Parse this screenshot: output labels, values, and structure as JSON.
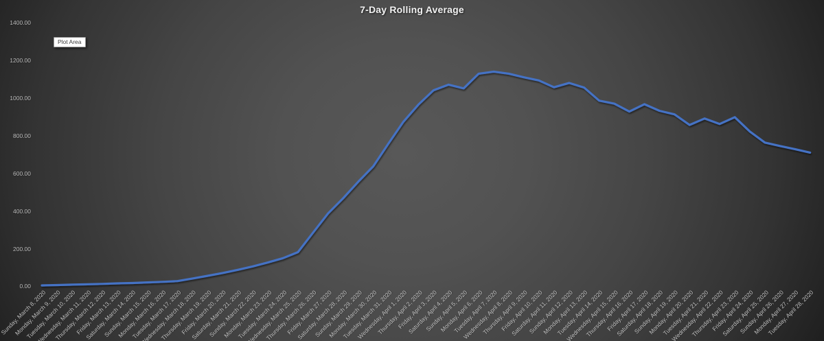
{
  "chart": {
    "title": "7-Day Rolling Average",
    "plot_area_tooltip": "Plot Area",
    "line_color": "#4472C4",
    "background_center_color": "#565656",
    "background_edge_color": "#1d1d1d",
    "gridline_color": "#808080",
    "axis_label_color": "#c4c4c4"
  },
  "chart_data": {
    "type": "line",
    "title": "7-Day Rolling Average",
    "xlabel": "",
    "ylabel": "",
    "ylim": [
      0,
      1400
    ],
    "ytick_interval": 200,
    "ytick_labels": [
      "0.00",
      "200.00",
      "400.00",
      "600.00",
      "800.00",
      "1000.00",
      "1200.00",
      "1400.00"
    ],
    "grid": "on",
    "legend": "none",
    "series_name": "7-Day Rolling Average",
    "categories": [
      "Sunday, March 8, 2020",
      "Monday, March 9, 2020",
      "Tuesday, March 10, 2020",
      "Wednesday, March 11, 2020",
      "Thursday, March 12, 2020",
      "Friday, March 13, 2020",
      "Saturday, March 14, 2020",
      "Sunday, March 15, 2020",
      "Monday, March 16, 2020",
      "Tuesday, March 17, 2020",
      "Wednesday, March 18, 2020",
      "Thursday, March 19, 2020",
      "Friday, March 20, 2020",
      "Saturday, March 21, 2020",
      "Sunday, March 22, 2020",
      "Monday, March 23, 2020",
      "Tuesday, March 24, 2020",
      "Wednesday, March 25, 2020",
      "Thursday, March 26, 2020",
      "Friday, March 27, 2020",
      "Saturday, March 28, 2020",
      "Sunday, March 29, 2020",
      "Monday, March 30, 2020",
      "Tuesday, March 31, 2020",
      "Wednesday, April 1, 2020",
      "Thursday, April 2, 2020",
      "Friday, April 3, 2020",
      "Saturday, April 4, 2020",
      "Sunday, April 5, 2020",
      "Monday, April 6, 2020",
      "Tuesday, April 7, 2020",
      "Wednesday, April 8, 2020",
      "Thursday, April 9, 2020",
      "Friday, April 10, 2020",
      "Saturday, April 11, 2020",
      "Sunday, April 12, 2020",
      "Monday, April 13, 2020",
      "Tuesday, April 14, 2020",
      "Wednesday, April 15, 2020",
      "Thursday, April 16, 2020",
      "Friday, April 17, 2020",
      "Saturday, April 18, 2020",
      "Sunday, April 19, 2020",
      "Monday, April 20, 2020",
      "Tuesday, April 21, 2020",
      "Wednesday, April 22, 2020",
      "Thursday, April 23, 2020",
      "Friday, April 24, 2020",
      "Saturday, April 25, 2020",
      "Sunday, April 26, 2020",
      "Monday, April 27, 2020",
      "Tuesday, April 28, 2020"
    ],
    "values": [
      5,
      7,
      9,
      11,
      13,
      16,
      18,
      21,
      24,
      28,
      42,
      56,
      71,
      88,
      106,
      127,
      150,
      182,
      285,
      388,
      468,
      556,
      638,
      758,
      875,
      966,
      1042,
      1072,
      1052,
      1130,
      1141,
      1130,
      1111,
      1094,
      1058,
      1081,
      1056,
      987,
      971,
      929,
      968,
      933,
      914,
      858,
      892,
      863,
      899,
      823,
      764,
      746,
      729,
      711
    ]
  }
}
